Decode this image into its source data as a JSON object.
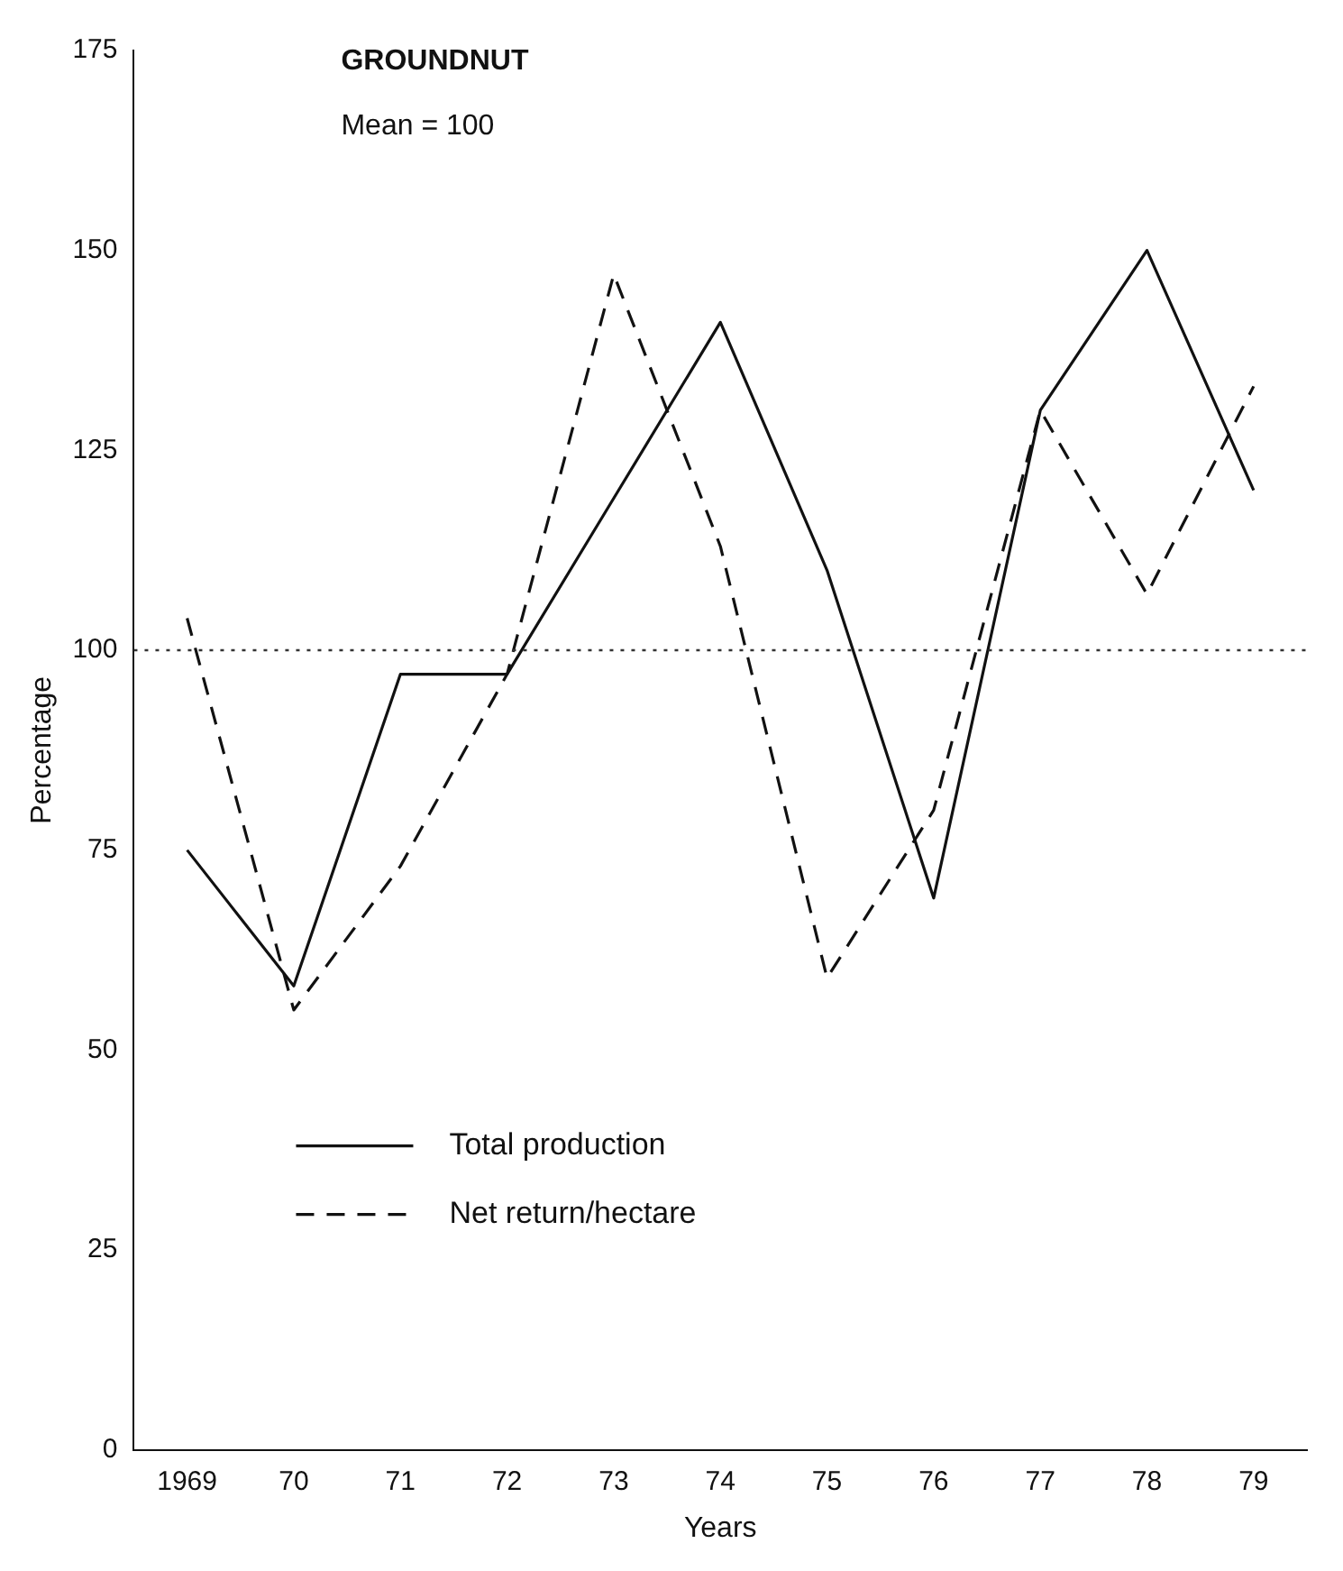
{
  "chart_data": {
    "type": "line",
    "title": "GROUNDNUT",
    "subtitle": "Mean = 100",
    "xlabel": "Years",
    "ylabel": "Percentage",
    "categories": [
      "1969",
      "70",
      "71",
      "72",
      "73",
      "74",
      "75",
      "76",
      "77",
      "78",
      "79"
    ],
    "series": [
      {
        "name": "Total production",
        "color": "#111111",
        "line_style": "solid",
        "values": [
          75,
          58,
          97,
          97,
          119,
          141,
          110,
          69,
          130,
          150,
          120
        ]
      },
      {
        "name": "Net return/hectare",
        "color": "#111111",
        "line_style": "dashed",
        "values": [
          104,
          55,
          73,
          97,
          147,
          113,
          59,
          80,
          130,
          107,
          133
        ]
      }
    ],
    "ylim": [
      0,
      175
    ],
    "yticks": [
      0,
      25,
      50,
      75,
      100,
      125,
      150,
      175
    ],
    "ref_lines": [
      {
        "axis": "y",
        "value": 100,
        "line_style": "dotted",
        "color": "#333333"
      }
    ],
    "grid": false,
    "legend": "bottom",
    "marker": "none"
  }
}
